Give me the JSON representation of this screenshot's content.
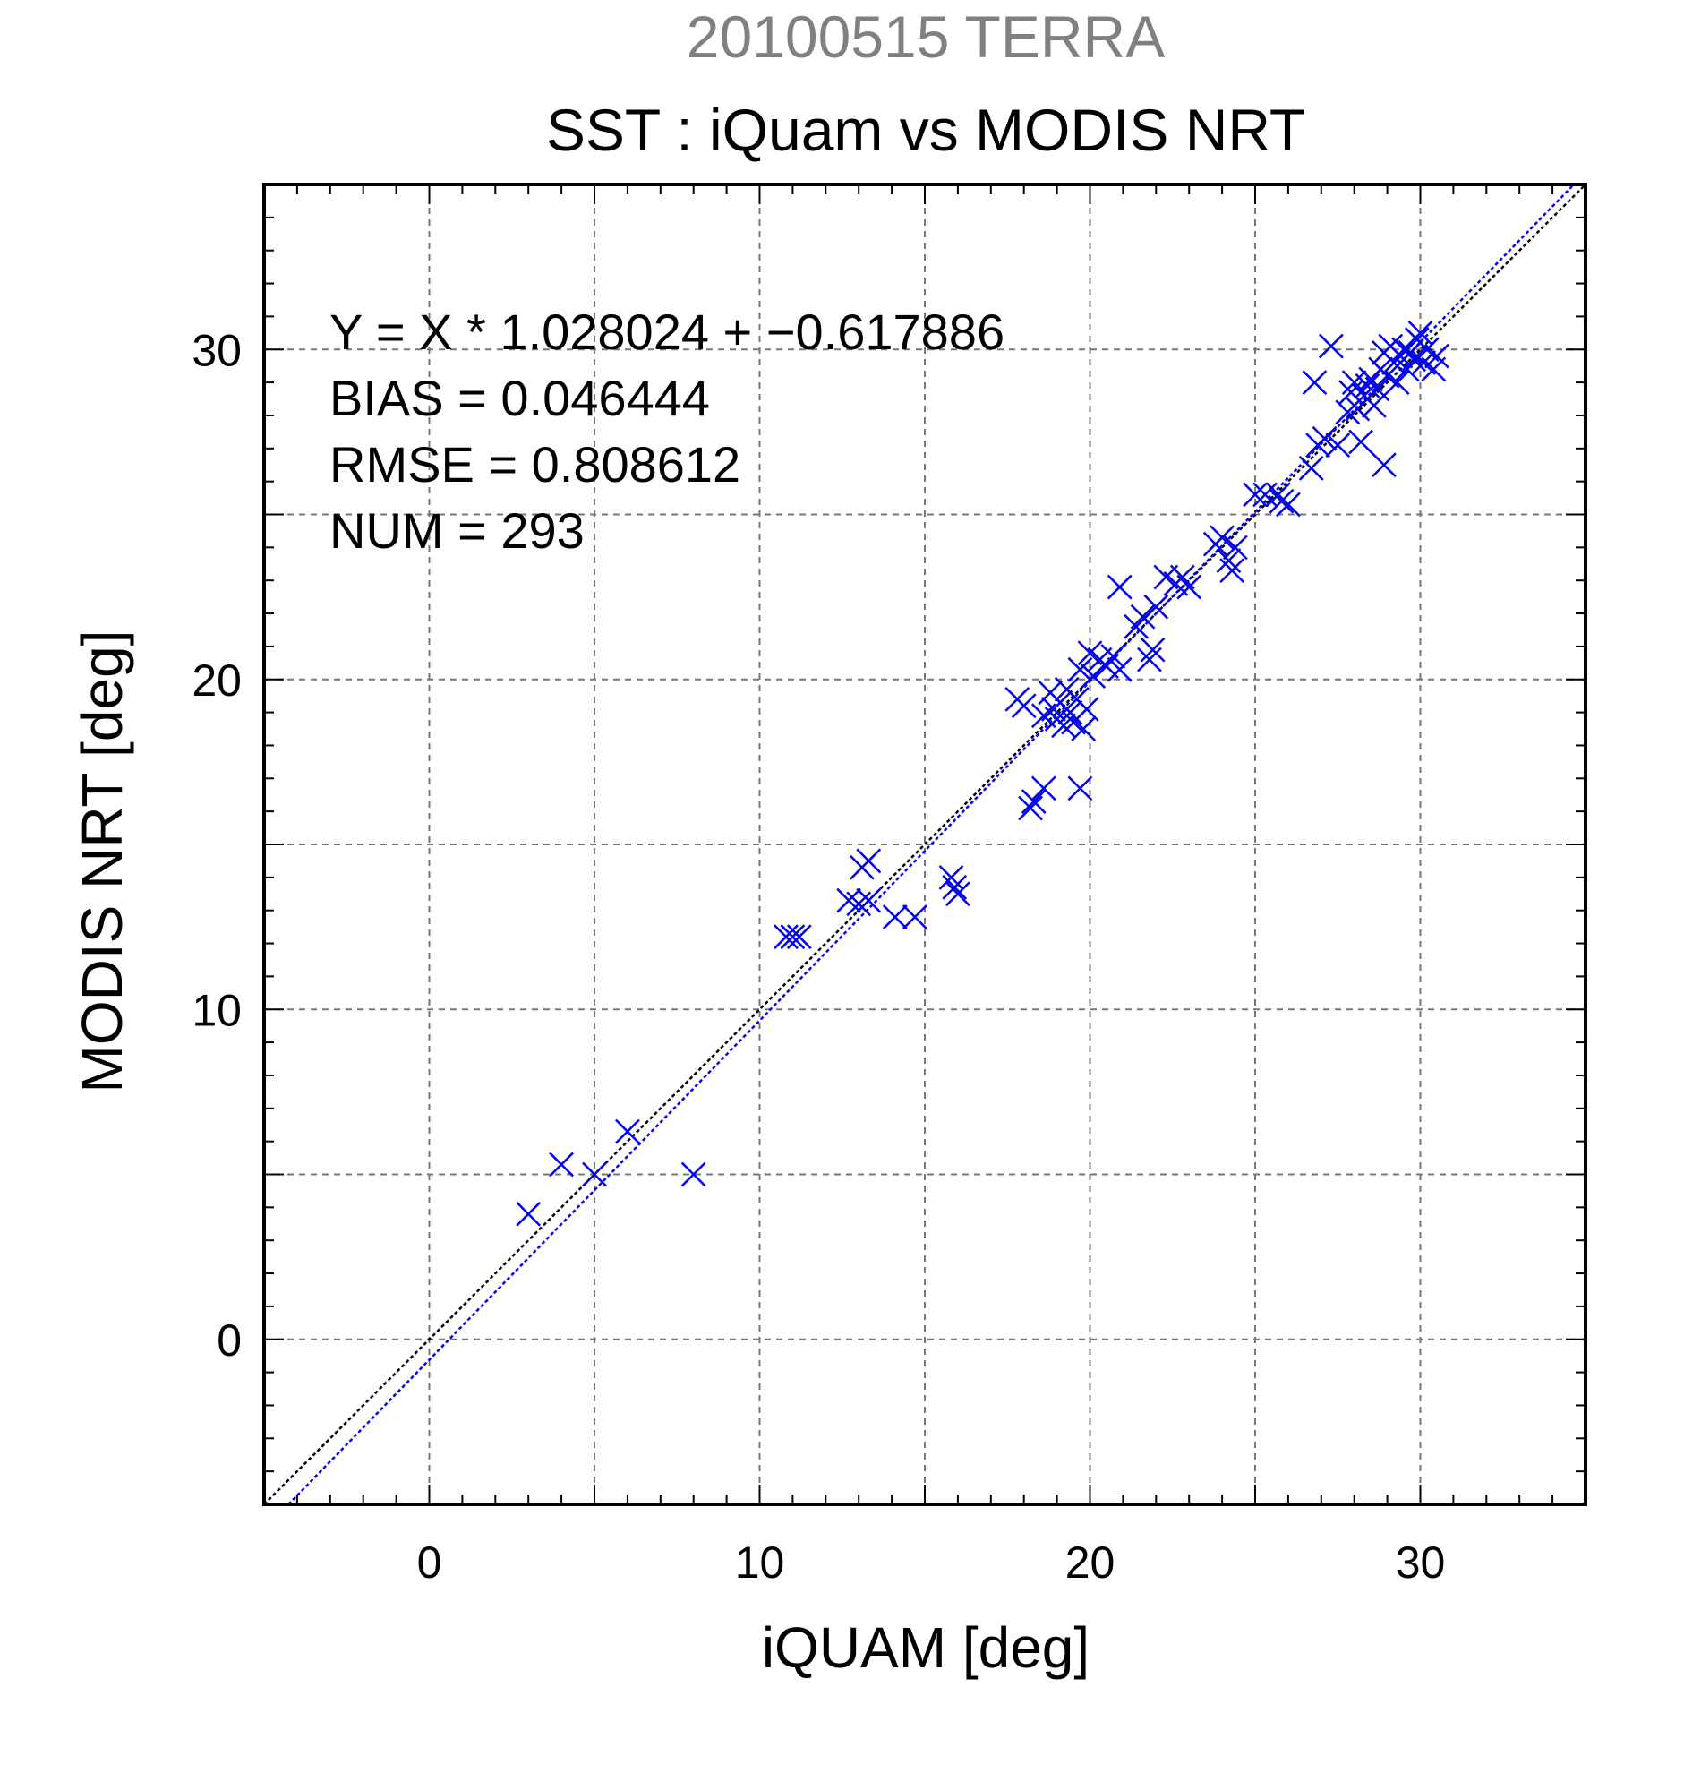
{
  "colors": {
    "subtitle": "#808080",
    "points": "#0000ee",
    "grid": "#777777",
    "identity_line": "#000000",
    "fit_line": "#0000ee"
  },
  "chart_data": {
    "type": "scatter",
    "subtitle": "20100515 TERRA",
    "title": "SST : iQuam vs MODIS NRT",
    "xlabel": "iQUAM [deg]",
    "ylabel": "MODIS NRT [deg]",
    "xlim": [
      -5,
      35
    ],
    "ylim": [
      -5,
      35
    ],
    "xticks": [
      0,
      10,
      20,
      30
    ],
    "yticks": [
      0,
      10,
      20,
      30
    ],
    "xtick_labels": [
      "0",
      "10",
      "20",
      "30"
    ],
    "ytick_labels": [
      "0",
      "10",
      "20",
      "30"
    ],
    "grid": true,
    "marker": "x",
    "stats": {
      "equation": "Y = X * 1.028024 + −0.617886",
      "bias": "BIAS = 0.046444",
      "rmse": "RMSE = 0.808612",
      "num": "NUM = 293"
    },
    "fit": {
      "slope": 1.028024,
      "intercept": -0.617886
    },
    "identity": {
      "slope": 1,
      "intercept": 0
    },
    "points": [
      {
        "x": 3.0,
        "y": 3.8
      },
      {
        "x": 4.0,
        "y": 5.3
      },
      {
        "x": 5.0,
        "y": 5.0
      },
      {
        "x": 6.0,
        "y": 6.3
      },
      {
        "x": 8.0,
        "y": 5.0
      },
      {
        "x": 10.8,
        "y": 12.2
      },
      {
        "x": 11.0,
        "y": 12.2
      },
      {
        "x": 11.2,
        "y": 12.2
      },
      {
        "x": 12.7,
        "y": 13.3
      },
      {
        "x": 13.0,
        "y": 13.2
      },
      {
        "x": 13.1,
        "y": 14.3
      },
      {
        "x": 13.3,
        "y": 14.5
      },
      {
        "x": 13.3,
        "y": 13.3
      },
      {
        "x": 14.1,
        "y": 12.8
      },
      {
        "x": 14.7,
        "y": 12.8
      },
      {
        "x": 15.8,
        "y": 14.0
      },
      {
        "x": 15.9,
        "y": 13.7
      },
      {
        "x": 16.0,
        "y": 13.5
      },
      {
        "x": 17.8,
        "y": 19.4
      },
      {
        "x": 18.0,
        "y": 19.2
      },
      {
        "x": 18.2,
        "y": 16.1
      },
      {
        "x": 18.3,
        "y": 16.3
      },
      {
        "x": 18.6,
        "y": 16.7
      },
      {
        "x": 18.6,
        "y": 18.9
      },
      {
        "x": 18.8,
        "y": 19.6
      },
      {
        "x": 18.9,
        "y": 19.1
      },
      {
        "x": 19.0,
        "y": 18.8
      },
      {
        "x": 19.1,
        "y": 19.3
      },
      {
        "x": 19.2,
        "y": 18.6
      },
      {
        "x": 19.3,
        "y": 19.7
      },
      {
        "x": 19.4,
        "y": 19.0
      },
      {
        "x": 19.5,
        "y": 18.7
      },
      {
        "x": 19.6,
        "y": 19.4
      },
      {
        "x": 19.7,
        "y": 16.7
      },
      {
        "x": 19.7,
        "y": 20.3
      },
      {
        "x": 19.8,
        "y": 18.5
      },
      {
        "x": 19.9,
        "y": 19.1
      },
      {
        "x": 20.0,
        "y": 20.8
      },
      {
        "x": 20.1,
        "y": 20.1
      },
      {
        "x": 20.3,
        "y": 20.6
      },
      {
        "x": 20.5,
        "y": 20.4
      },
      {
        "x": 20.7,
        "y": 20.7
      },
      {
        "x": 20.9,
        "y": 20.3
      },
      {
        "x": 20.9,
        "y": 22.8
      },
      {
        "x": 21.4,
        "y": 21.6
      },
      {
        "x": 21.6,
        "y": 21.9
      },
      {
        "x": 21.8,
        "y": 20.6
      },
      {
        "x": 21.9,
        "y": 20.9
      },
      {
        "x": 22.0,
        "y": 22.2
      },
      {
        "x": 22.3,
        "y": 23.1
      },
      {
        "x": 22.6,
        "y": 22.9
      },
      {
        "x": 22.8,
        "y": 23.1
      },
      {
        "x": 23.0,
        "y": 22.8
      },
      {
        "x": 23.8,
        "y": 24.1
      },
      {
        "x": 24.0,
        "y": 24.3
      },
      {
        "x": 24.2,
        "y": 23.6
      },
      {
        "x": 24.3,
        "y": 23.3
      },
      {
        "x": 24.4,
        "y": 24.0
      },
      {
        "x": 25.0,
        "y": 25.6
      },
      {
        "x": 25.3,
        "y": 25.6
      },
      {
        "x": 25.7,
        "y": 25.6
      },
      {
        "x": 25.8,
        "y": 25.4
      },
      {
        "x": 26.0,
        "y": 25.3
      },
      {
        "x": 26.7,
        "y": 26.4
      },
      {
        "x": 26.8,
        "y": 29.0
      },
      {
        "x": 26.9,
        "y": 27.1
      },
      {
        "x": 27.1,
        "y": 27.3
      },
      {
        "x": 27.3,
        "y": 30.1
      },
      {
        "x": 27.5,
        "y": 27.1
      },
      {
        "x": 27.8,
        "y": 28.1
      },
      {
        "x": 27.9,
        "y": 28.7
      },
      {
        "x": 28.0,
        "y": 29.0
      },
      {
        "x": 28.1,
        "y": 28.2
      },
      {
        "x": 28.2,
        "y": 27.2
      },
      {
        "x": 28.3,
        "y": 28.6
      },
      {
        "x": 28.4,
        "y": 28.9
      },
      {
        "x": 28.5,
        "y": 29.1
      },
      {
        "x": 28.6,
        "y": 28.3
      },
      {
        "x": 28.7,
        "y": 28.8
      },
      {
        "x": 28.8,
        "y": 29.4
      },
      {
        "x": 28.9,
        "y": 26.5
      },
      {
        "x": 28.9,
        "y": 29.9
      },
      {
        "x": 29.0,
        "y": 29.2
      },
      {
        "x": 29.1,
        "y": 30.1
      },
      {
        "x": 29.2,
        "y": 29.6
      },
      {
        "x": 29.3,
        "y": 29.0
      },
      {
        "x": 29.4,
        "y": 29.8
      },
      {
        "x": 29.5,
        "y": 30.0
      },
      {
        "x": 29.6,
        "y": 29.4
      },
      {
        "x": 29.7,
        "y": 29.9
      },
      {
        "x": 29.8,
        "y": 29.7
      },
      {
        "x": 29.9,
        "y": 30.3
      },
      {
        "x": 30.0,
        "y": 30.5
      },
      {
        "x": 30.1,
        "y": 29.6
      },
      {
        "x": 30.2,
        "y": 30.0
      },
      {
        "x": 30.4,
        "y": 29.4
      },
      {
        "x": 30.5,
        "y": 29.8
      }
    ]
  }
}
